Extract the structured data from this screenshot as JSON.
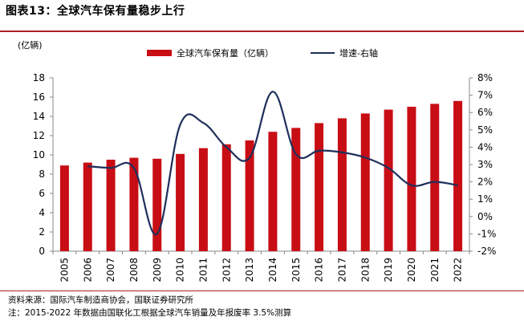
{
  "header": {
    "title": "图表13：全球汽车保有量稳步上行"
  },
  "unit_label": "(亿辆)",
  "footer": {
    "source": "资料来源：国际汽车制造商协会，国联证券研究所",
    "note": "注：2015-2022 年数据由国联化工根据全球汽车销量及年报废率 3.5%测算"
  },
  "colors": {
    "bar": "#c80d15",
    "line": "#1f2f5b",
    "accent": "#b01f24"
  },
  "chart_data": {
    "type": "bar",
    "categories": [
      "2005",
      "2006",
      "2007",
      "2008",
      "2009",
      "2010",
      "2011",
      "2012",
      "2013",
      "2014",
      "2015",
      "2016",
      "2017",
      "2018",
      "2019",
      "2020",
      "2021",
      "2022"
    ],
    "series": [
      {
        "name": "全球汽车保有量（亿辆）",
        "type": "bar",
        "axis": "left",
        "values": [
          8.9,
          9.2,
          9.5,
          9.7,
          9.6,
          10.1,
          10.7,
          11.1,
          11.5,
          12.4,
          12.8,
          13.3,
          13.8,
          14.3,
          14.7,
          15.0,
          15.3,
          15.6
        ]
      },
      {
        "name": "增速-右轴",
        "type": "line",
        "axis": "right",
        "values": [
          null,
          2.9,
          2.8,
          2.8,
          -1.0,
          5.3,
          5.4,
          4.0,
          3.4,
          7.2,
          3.6,
          3.8,
          3.7,
          3.4,
          2.8,
          1.8,
          2.0,
          1.8
        ]
      }
    ],
    "y_left": {
      "ylim": [
        0,
        18
      ],
      "ticks": [
        "0",
        "2",
        "4",
        "6",
        "8",
        "10",
        "12",
        "14",
        "16",
        "18"
      ]
    },
    "y_right": {
      "ylim": [
        -2,
        8
      ],
      "ticks": [
        "-2%",
        "-1%",
        "0%",
        "1%",
        "2%",
        "3%",
        "4%",
        "5%",
        "6%",
        "7%",
        "8%"
      ]
    },
    "legend_position": "top-center",
    "grid": false
  }
}
